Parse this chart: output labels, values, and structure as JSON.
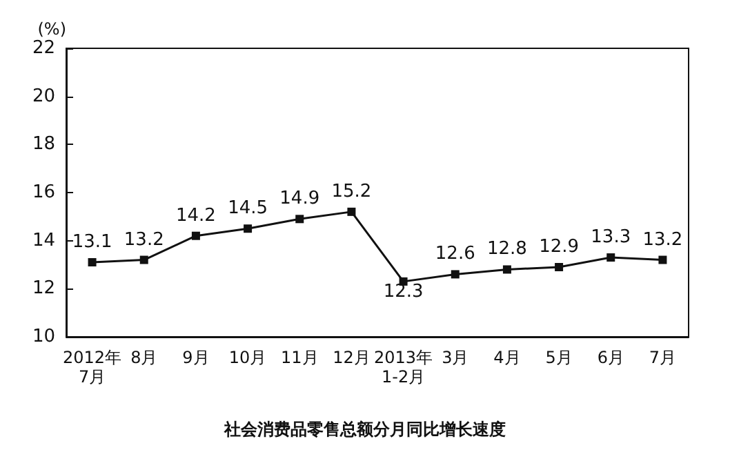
{
  "chart_data": {
    "type": "line",
    "title": "社会消费品零售总额分月同比增长速度",
    "ylabel": "(%)",
    "categories": [
      "2012年\n7月",
      "8月",
      "9月",
      "10月",
      "11月",
      "12月",
      "2013年\n1-2月",
      "3月",
      "4月",
      "5月",
      "6月",
      "7月"
    ],
    "series": [
      {
        "color": "#111111",
        "values": [
          13.1,
          13.2,
          14.2,
          14.5,
          14.9,
          15.2,
          12.3,
          12.6,
          12.8,
          12.9,
          13.3,
          13.2
        ]
      }
    ],
    "ylim": [
      10,
      22
    ],
    "yticks": [
      10,
      12,
      14,
      16,
      18,
      20,
      22
    ],
    "grid": false,
    "marker": "square",
    "line_style": "solid",
    "data_labels": true
  }
}
